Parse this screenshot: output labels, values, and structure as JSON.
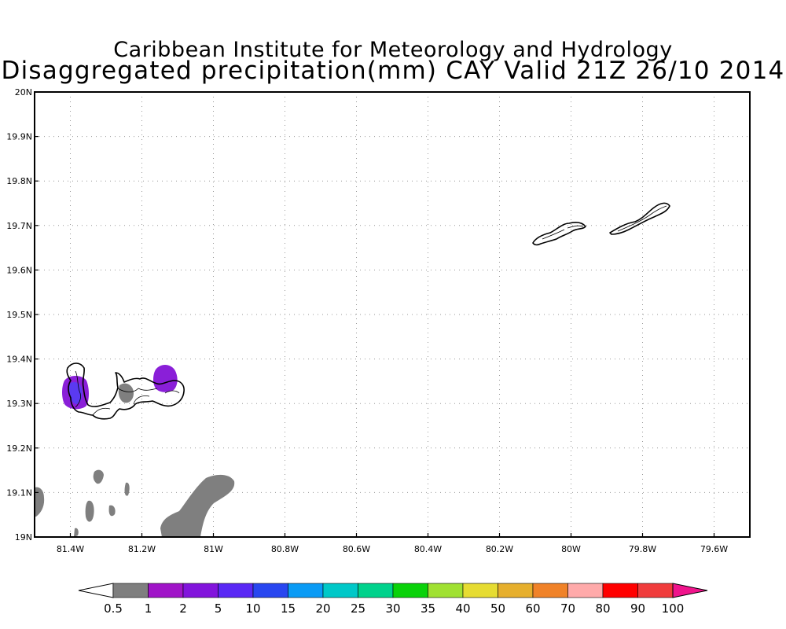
{
  "header": {
    "institution": "Caribbean Institute for Meteorology and Hydrology",
    "product": "Disaggregated precipitation(mm) CAY Valid 21Z 26/10 2014"
  },
  "map": {
    "region": "Cayman Islands",
    "lon_range": [
      -81.5,
      -79.5
    ],
    "lat_range": [
      19.0,
      20.0
    ],
    "grid": "dotted",
    "lat_labels": [
      "20N",
      "19.9N",
      "19.8N",
      "19.7N",
      "19.6N",
      "19.5N",
      "19.4N",
      "19.3N",
      "19.2N",
      "19.1N",
      "19N"
    ],
    "lon_labels": [
      "81.4W",
      "81.2W",
      "81W",
      "80.8W",
      "80.6W",
      "80.4W",
      "80.2W",
      "80W",
      "79.8W",
      "79.6W"
    ],
    "islands": [
      "Grand Cayman",
      "Little Cayman",
      "Cayman Brac"
    ],
    "precip_areas": [
      {
        "place": "west Grand Cayman",
        "class": "2-5",
        "color": "#8a1fd8"
      },
      {
        "place": "east Grand Cayman",
        "class": "2-5",
        "color": "#8a1fd8"
      },
      {
        "place": "central Grand Cayman",
        "class": "0.5-1",
        "color": "#7f7f7f"
      },
      {
        "place": "south of Grand Cayman",
        "class": "0.5-1",
        "color": "#7f7f7f"
      }
    ]
  },
  "colorbar": {
    "labels": [
      "0.5",
      "1",
      "2",
      "5",
      "10",
      "15",
      "20",
      "25",
      "30",
      "35",
      "40",
      "50",
      "60",
      "70",
      "80",
      "90",
      "100"
    ],
    "low_color": "#ffffff",
    "colors": [
      "#7f7f7f",
      "#a014c8",
      "#8214dc",
      "#5a28f5",
      "#2846f0",
      "#0a9bf5",
      "#00c8c8",
      "#00d28c",
      "#0ad20a",
      "#a0e132",
      "#e6dc32",
      "#e6af2d",
      "#f08228",
      "#ffaaaa",
      "#ff0000",
      "#f03c3c"
    ],
    "high_color": "#f0148c"
  }
}
